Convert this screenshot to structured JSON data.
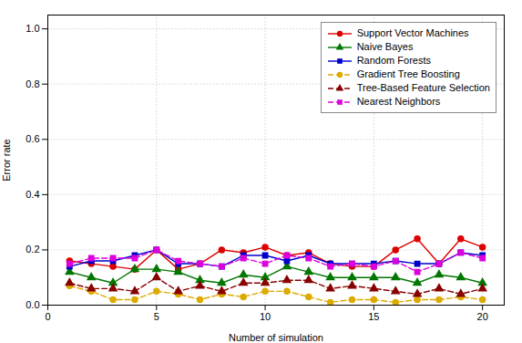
{
  "chart_data": {
    "type": "line",
    "xlabel": "Number of simulation",
    "ylabel": "Error rate",
    "x": [
      1,
      2,
      3,
      4,
      5,
      6,
      7,
      8,
      9,
      10,
      11,
      12,
      13,
      14,
      15,
      16,
      17,
      18,
      19,
      20
    ],
    "series": [
      {
        "name": "Support Vector Machines",
        "color": "#dd0000",
        "marker": "circle",
        "line_style": "solid",
        "values": [
          0.16,
          0.15,
          0.14,
          0.13,
          0.2,
          0.13,
          0.15,
          0.2,
          0.19,
          0.21,
          0.18,
          0.19,
          0.15,
          0.14,
          0.14,
          0.2,
          0.24,
          0.15,
          0.24,
          0.21
        ]
      },
      {
        "name": "Naive Bayes",
        "color": "#007700",
        "marker": "triangle",
        "line_style": "solid",
        "values": [
          0.12,
          0.1,
          0.08,
          0.13,
          0.13,
          0.12,
          0.09,
          0.08,
          0.11,
          0.1,
          0.14,
          0.12,
          0.1,
          0.1,
          0.1,
          0.1,
          0.08,
          0.11,
          0.1,
          0.08
        ]
      },
      {
        "name": "Random Forests",
        "color": "#0000cc",
        "marker": "square",
        "line_style": "solid",
        "values": [
          0.14,
          0.16,
          0.16,
          0.18,
          0.2,
          0.15,
          0.15,
          0.14,
          0.18,
          0.18,
          0.16,
          0.18,
          0.15,
          0.15,
          0.15,
          0.16,
          0.15,
          0.15,
          0.19,
          0.18
        ]
      },
      {
        "name": "Gradient Tree Boosting",
        "color": "#ddaa00",
        "marker": "circle",
        "line_style": "dashed",
        "values": [
          0.07,
          0.05,
          0.02,
          0.02,
          0.05,
          0.04,
          0.02,
          0.04,
          0.03,
          0.05,
          0.05,
          0.03,
          0.01,
          0.02,
          0.02,
          0.01,
          0.02,
          0.02,
          0.03,
          0.02
        ]
      },
      {
        "name": "Tree-Based Feature Selection",
        "color": "#880000",
        "marker": "triangle",
        "line_style": "dashed",
        "values": [
          0.08,
          0.06,
          0.06,
          0.05,
          0.1,
          0.05,
          0.07,
          0.05,
          0.08,
          0.08,
          0.09,
          0.09,
          0.06,
          0.07,
          0.06,
          0.05,
          0.04,
          0.06,
          0.04,
          0.06
        ]
      },
      {
        "name": "Nearest Neighbors",
        "color": "#dd00dd",
        "marker": "square",
        "line_style": "dashed",
        "values": [
          0.15,
          0.17,
          0.17,
          0.17,
          0.2,
          0.16,
          0.15,
          0.14,
          0.17,
          0.15,
          0.18,
          0.17,
          0.14,
          0.15,
          0.14,
          0.16,
          0.12,
          0.15,
          0.19,
          0.17
        ]
      }
    ],
    "xlim": [
      0,
      21
    ],
    "ylim": [
      0.0,
      1.05
    ],
    "xticks": [
      0,
      5,
      10,
      15,
      20
    ],
    "yticks": [
      {
        "value": 0.0,
        "label": "0.0"
      },
      0.2,
      0.4,
      0.6,
      0.8,
      {
        "value": 1.0,
        "label": "1.0"
      }
    ],
    "grid": true,
    "legend": "upper right"
  }
}
